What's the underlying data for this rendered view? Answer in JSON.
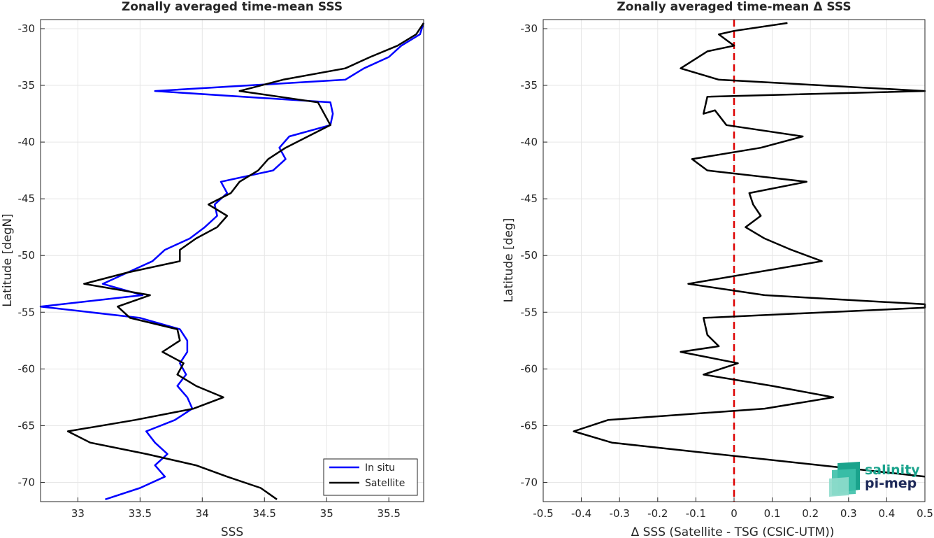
{
  "chart_data": [
    {
      "type": "line",
      "title": "Zonally averaged time-mean SSS",
      "xlabel": "SSS",
      "ylabel": "Latitude [degN]",
      "xlim": [
        32.7,
        35.78
      ],
      "ylim": [
        -71.7,
        -29.2
      ],
      "xticks": [
        33,
        33.5,
        34,
        34.5,
        35,
        35.5
      ],
      "xtick_labels": [
        "33",
        "33.5",
        "34",
        "34.5",
        "35",
        "35.5"
      ],
      "yticks": [
        -70,
        -65,
        -60,
        -55,
        -50,
        -45,
        -40,
        -35,
        -30
      ],
      "ytick_labels": [
        "-70",
        "-65",
        "-60",
        "-55",
        "-50",
        "-45",
        "-40",
        "-35",
        "-30"
      ],
      "grid": true,
      "legend_location": "bottom-right",
      "series": [
        {
          "name": "In situ",
          "color": "#0000ff",
          "points": [
            [
              35.78,
              -29.5
            ],
            [
              35.75,
              -30.5
            ],
            [
              35.6,
              -31.5
            ],
            [
              35.5,
              -32.5
            ],
            [
              35.3,
              -33.5
            ],
            [
              35.15,
              -34.5
            ],
            [
              33.62,
              -35.5
            ],
            [
              35.03,
              -36.5
            ],
            [
              35.05,
              -37.5
            ],
            [
              35.03,
              -38.5
            ],
            [
              34.7,
              -39.5
            ],
            [
              34.62,
              -40.5
            ],
            [
              34.67,
              -41.5
            ],
            [
              34.57,
              -42.5
            ],
            [
              34.15,
              -43.5
            ],
            [
              34.2,
              -44.5
            ],
            [
              34.1,
              -45.5
            ],
            [
              34.12,
              -46.5
            ],
            [
              34.02,
              -47.5
            ],
            [
              33.9,
              -48.5
            ],
            [
              33.7,
              -49.5
            ],
            [
              33.6,
              -50.5
            ],
            [
              33.4,
              -51.5
            ],
            [
              33.2,
              -52.5
            ],
            [
              33.52,
              -53.5
            ],
            [
              32.7,
              -54.5
            ],
            [
              33.5,
              -55.5
            ],
            [
              33.82,
              -56.5
            ],
            [
              33.88,
              -57.5
            ],
            [
              33.88,
              -58.5
            ],
            [
              33.82,
              -59.5
            ],
            [
              33.87,
              -60.5
            ],
            [
              33.8,
              -61.5
            ],
            [
              33.88,
              -62.5
            ],
            [
              33.92,
              -63.5
            ],
            [
              33.78,
              -64.5
            ],
            [
              33.55,
              -65.5
            ],
            [
              33.62,
              -66.5
            ],
            [
              33.72,
              -67.5
            ],
            [
              33.62,
              -68.5
            ],
            [
              33.7,
              -69.5
            ],
            [
              33.5,
              -70.5
            ],
            [
              33.22,
              -71.5
            ]
          ]
        },
        {
          "name": "Satellite",
          "color": "#000000",
          "points": [
            [
              35.78,
              -29.5
            ],
            [
              35.72,
              -30.5
            ],
            [
              35.57,
              -31.5
            ],
            [
              35.35,
              -32.5
            ],
            [
              35.15,
              -33.5
            ],
            [
              34.65,
              -34.5
            ],
            [
              34.3,
              -35.5
            ],
            [
              34.93,
              -36.5
            ],
            [
              35.03,
              -38.5
            ],
            [
              34.85,
              -39.5
            ],
            [
              34.67,
              -40.5
            ],
            [
              34.53,
              -41.5
            ],
            [
              34.45,
              -42.5
            ],
            [
              34.3,
              -43.5
            ],
            [
              34.23,
              -44.5
            ],
            [
              34.05,
              -45.5
            ],
            [
              34.2,
              -46.5
            ],
            [
              34.12,
              -47.5
            ],
            [
              33.95,
              -48.5
            ],
            [
              33.82,
              -49.5
            ],
            [
              33.82,
              -50.5
            ],
            [
              33.4,
              -51.5
            ],
            [
              33.05,
              -52.5
            ],
            [
              33.58,
              -53.5
            ],
            [
              33.32,
              -54.5
            ],
            [
              33.42,
              -55.5
            ],
            [
              33.8,
              -56.5
            ],
            [
              33.82,
              -57.5
            ],
            [
              33.68,
              -58.5
            ],
            [
              33.85,
              -59.5
            ],
            [
              33.8,
              -60.5
            ],
            [
              33.95,
              -61.5
            ],
            [
              34.17,
              -62.5
            ],
            [
              33.93,
              -63.5
            ],
            [
              33.46,
              -64.5
            ],
            [
              32.92,
              -65.5
            ],
            [
              33.1,
              -66.5
            ],
            [
              33.55,
              -67.5
            ],
            [
              33.95,
              -68.5
            ],
            [
              34.2,
              -69.5
            ],
            [
              34.47,
              -70.5
            ],
            [
              34.6,
              -71.5
            ]
          ]
        }
      ]
    },
    {
      "type": "line",
      "title": "Zonally averaged time-mean Δ SSS",
      "xlabel": "Δ SSS (Satellite - TSG (CSIC-UTM))",
      "ylabel": "Latitude [deg]",
      "xlim": [
        -0.5,
        0.5
      ],
      "ylim": [
        -71.7,
        -29.2
      ],
      "xticks": [
        -0.5,
        -0.4,
        -0.3,
        -0.2,
        -0.1,
        0,
        0.1,
        0.2,
        0.3,
        0.4,
        0.5
      ],
      "xtick_labels": [
        "-0.5",
        "-0.4",
        "-0.3",
        "-0.2",
        "-0.1",
        "0",
        "0.1",
        "0.2",
        "0.3",
        "0.4",
        "0.5"
      ],
      "yticks": [
        -70,
        -65,
        -60,
        -55,
        -50,
        -45,
        -40,
        -35,
        -30
      ],
      "ytick_labels": [
        "-70",
        "-65",
        "-60",
        "-55",
        "-50",
        "-45",
        "-40",
        "-35",
        "-30"
      ],
      "grid": true,
      "reference_line": {
        "x": 0,
        "color": "#dd0000",
        "style": "dashed"
      },
      "series": [
        {
          "color": "#000000",
          "points": [
            [
              0.14,
              -29.5
            ],
            [
              0.0,
              -30.2
            ],
            [
              -0.04,
              -30.5
            ],
            [
              -0.02,
              -31.0
            ],
            [
              0.0,
              -31.5
            ],
            [
              -0.07,
              -32.0
            ],
            [
              -0.14,
              -33.5
            ],
            [
              -0.04,
              -34.5
            ],
            [
              0.5,
              -35.5
            ],
            [
              -0.07,
              -36.0
            ],
            [
              -0.08,
              -37.5
            ],
            [
              -0.05,
              -37.2
            ],
            [
              -0.02,
              -38.5
            ],
            [
              0.18,
              -39.5
            ],
            [
              0.07,
              -40.5
            ],
            [
              -0.11,
              -41.5
            ],
            [
              -0.07,
              -42.5
            ],
            [
              0.19,
              -43.5
            ],
            [
              0.04,
              -44.5
            ],
            [
              0.05,
              -45.5
            ],
            [
              0.07,
              -46.5
            ],
            [
              0.03,
              -47.5
            ],
            [
              0.08,
              -48.5
            ],
            [
              0.15,
              -49.5
            ],
            [
              0.23,
              -50.5
            ],
            [
              -0.12,
              -52.5
            ],
            [
              0.08,
              -53.5
            ],
            [
              0.5,
              -54.3
            ],
            [
              0.5,
              -54.6
            ],
            [
              -0.08,
              -55.5
            ],
            [
              -0.07,
              -57.0
            ],
            [
              -0.04,
              -58.0
            ],
            [
              -0.14,
              -58.5
            ],
            [
              0.01,
              -59.5
            ],
            [
              -0.08,
              -60.5
            ],
            [
              0.1,
              -61.5
            ],
            [
              0.26,
              -62.5
            ],
            [
              0.08,
              -63.5
            ],
            [
              -0.33,
              -64.5
            ],
            [
              -0.42,
              -65.5
            ],
            [
              -0.32,
              -66.5
            ],
            [
              0.5,
              -69.5
            ]
          ]
        }
      ]
    }
  ],
  "logo": {
    "line1": "salinity",
    "line2": "pi-mep"
  }
}
